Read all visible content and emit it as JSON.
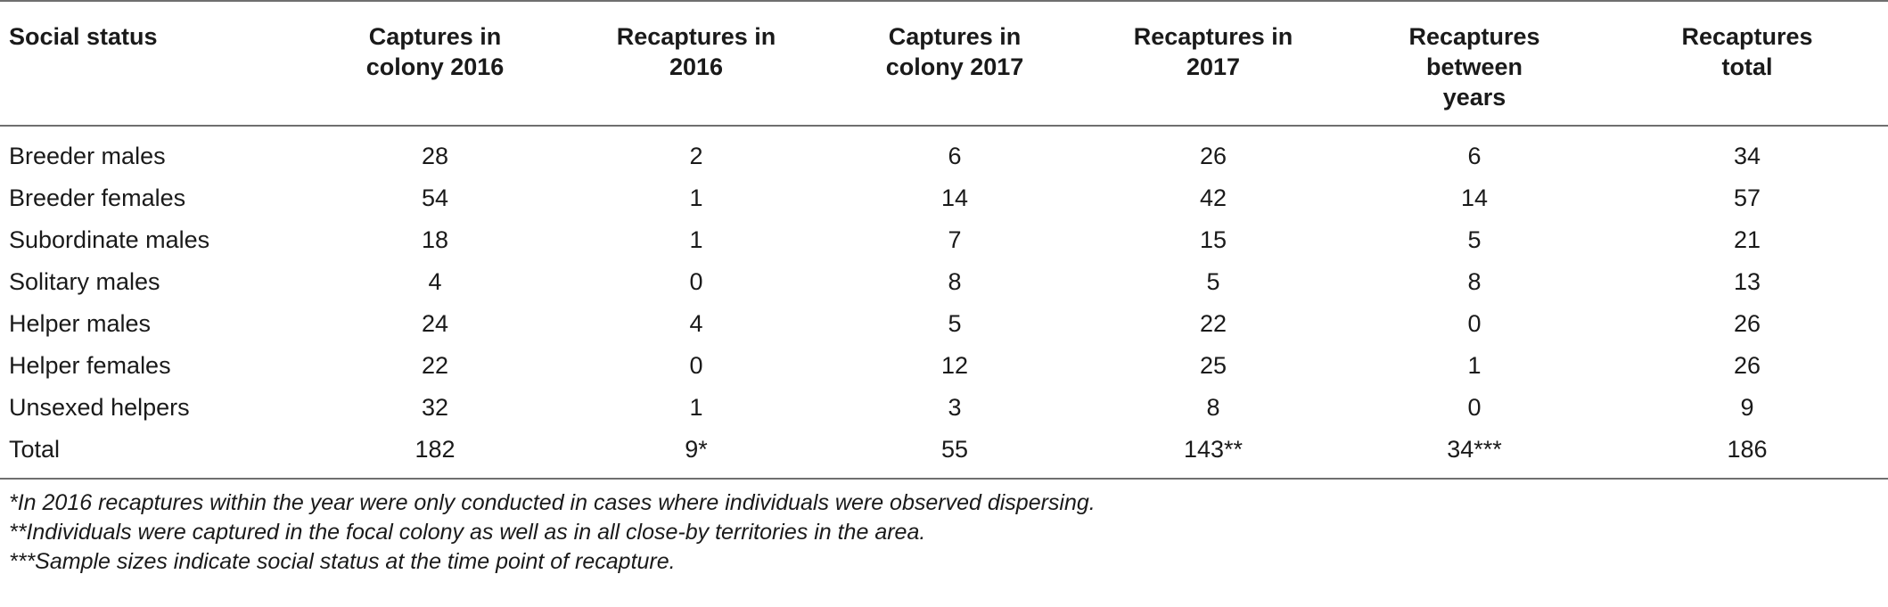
{
  "table": {
    "headers": [
      "Social status",
      "Captures in colony 2016",
      "Recaptures in 2016",
      "Captures in colony 2017",
      "Recaptures in 2017",
      "Recaptures between years",
      "Recaptures total"
    ],
    "rows": [
      [
        "Breeder males",
        "28",
        "2",
        "6",
        "26",
        "6",
        "34"
      ],
      [
        "Breeder females",
        "54",
        "1",
        "14",
        "42",
        "14",
        "57"
      ],
      [
        "Subordinate males",
        "18",
        "1",
        "7",
        "15",
        "5",
        "21"
      ],
      [
        "Solitary males",
        "4",
        "0",
        "8",
        "5",
        "8",
        "13"
      ],
      [
        "Helper males",
        "24",
        "4",
        "5",
        "22",
        "0",
        "26"
      ],
      [
        "Helper females",
        "22",
        "0",
        "12",
        "25",
        "1",
        "26"
      ],
      [
        "Unsexed helpers",
        "32",
        "1",
        "3",
        "8",
        "0",
        "9"
      ],
      [
        "Total",
        "182",
        "9*",
        "55",
        "143**",
        "34***",
        "186"
      ]
    ]
  },
  "footnotes": [
    "*In 2016 recaptures within the year were only conducted in cases where individuals were observed dispersing.",
    "**Individuals were captured in the focal colony as well as in all close-by territories in the area.",
    "***Sample sizes indicate social status at the time point of recapture."
  ]
}
